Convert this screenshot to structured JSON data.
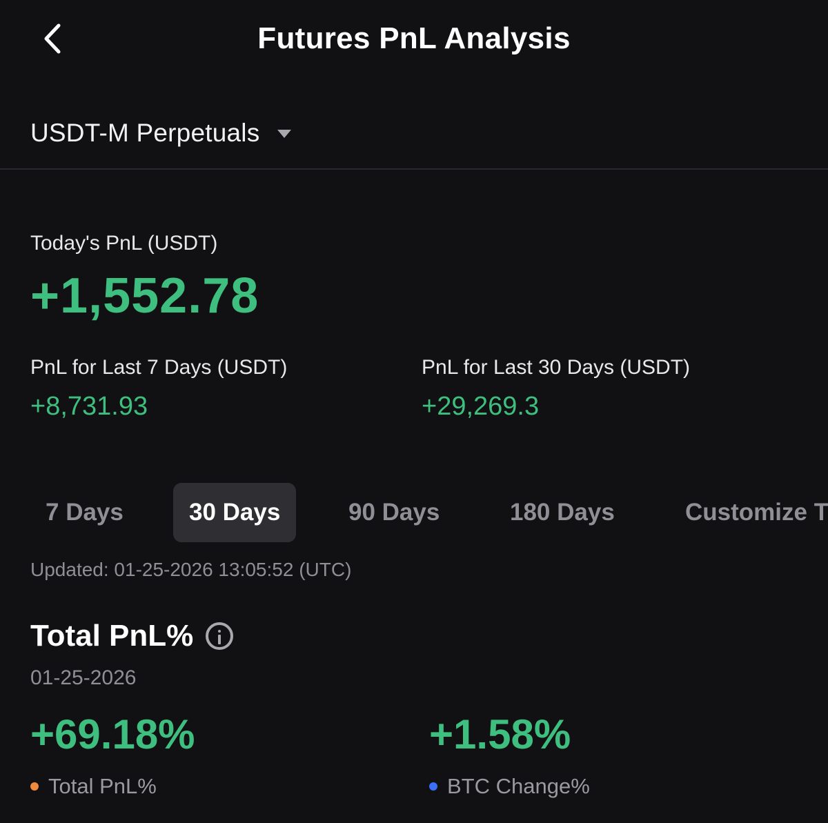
{
  "header": {
    "title": "Futures PnL Analysis",
    "back_icon": "chevron-left-icon"
  },
  "product_selector": {
    "label": "USDT-M Perpetuals",
    "icon": "caret-down-icon"
  },
  "today": {
    "label": "Today's PnL (USDT)",
    "value": "+1,552.78"
  },
  "summary": {
    "last_7": {
      "label": "PnL for Last 7 Days (USDT)",
      "value": "+8,731.93"
    },
    "last_30": {
      "label": "PnL for Last 30 Days (USDT)",
      "value": "+29,269.3"
    }
  },
  "tabs": [
    {
      "label": "7 Days",
      "active": false
    },
    {
      "label": "30 Days",
      "active": true
    },
    {
      "label": "90 Days",
      "active": false
    },
    {
      "label": "180 Days",
      "active": false
    },
    {
      "label": "Customize T",
      "active": false
    }
  ],
  "updated": "Updated: 01-25-2026 13:05:52 (UTC)",
  "total_pnl": {
    "title": "Total PnL%",
    "info_icon": "info-icon",
    "date": "01-25-2026",
    "pnl_value": "+69.18%",
    "btc_value": "+1.58%",
    "legend": {
      "pnl_label": "Total PnL%",
      "btc_label": "BTC Change%",
      "pnl_color": "#f08a3c",
      "btc_color": "#3b6ff5"
    }
  },
  "colors": {
    "positive": "#3fbf7f",
    "background": "#111113",
    "active_tab": "#2f2f33"
  }
}
